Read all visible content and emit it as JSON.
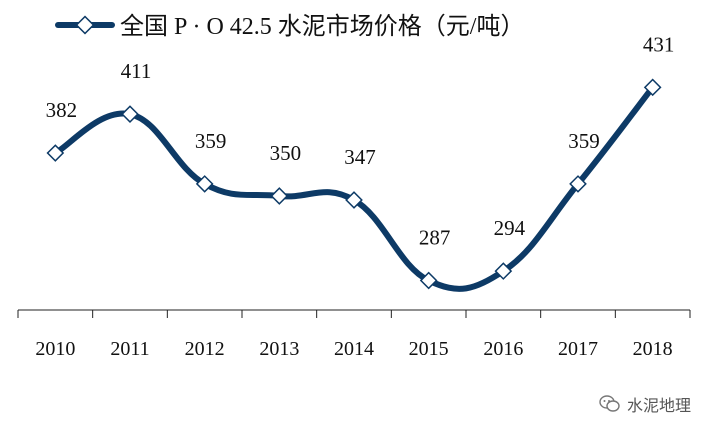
{
  "chart_data": {
    "type": "line",
    "legend": "全国 P · O 42.5 水泥市场价格（元/吨）",
    "categories": [
      "2010",
      "2011",
      "2012",
      "2013",
      "2014",
      "2015",
      "2016",
      "2017",
      "2018"
    ],
    "series": [
      {
        "name": "全国 P · O 42.5 水泥市场价格（元/吨）",
        "values": [
          382,
          411,
          359,
          350,
          347,
          287,
          294,
          359,
          431
        ]
      }
    ],
    "ylim": [
      265,
      470
    ],
    "grid": false,
    "legend_position": "top-left",
    "line_color": "#0d3a66",
    "marker_fill": "#ffffff"
  },
  "watermark": {
    "text": "水泥地理",
    "icon": "wechat-icon"
  }
}
